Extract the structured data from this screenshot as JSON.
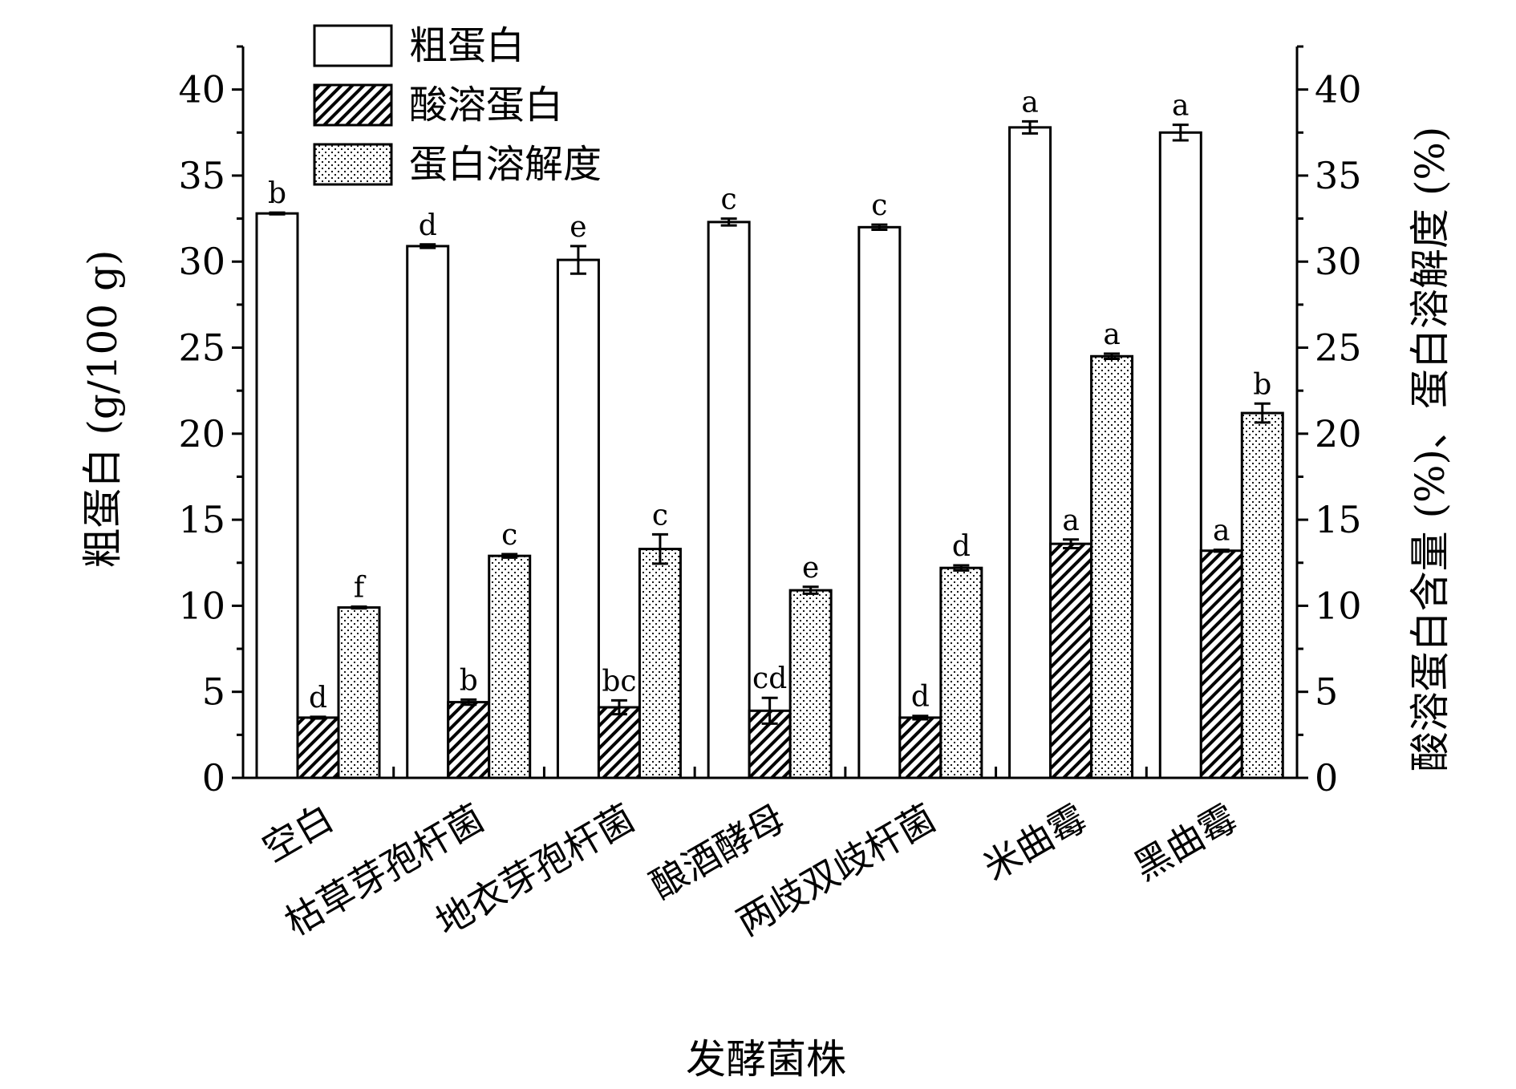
{
  "chart_data": {
    "type": "bar",
    "title": "",
    "xlabel": "发酵菌株",
    "ylabel_left": "粗蛋白 (g/100 g)",
    "ylabel_right": "酸溶蛋白含量 (%)、蛋白溶解度 (%)",
    "ylim_left": [
      0,
      42.5
    ],
    "ylim_right": [
      0,
      42.5
    ],
    "yticks_left": [
      0,
      5,
      10,
      15,
      20,
      25,
      30,
      35,
      40
    ],
    "yticks_right": [
      0,
      5,
      10,
      15,
      20,
      25,
      30,
      35,
      40
    ],
    "grid": false,
    "legend_position": "top-left",
    "categories": [
      "空白",
      "枯草芽孢杆菌",
      "地衣芽孢杆菌",
      "酿酒酵母",
      "两歧双歧杆菌",
      "米曲霉",
      "黑曲霉"
    ],
    "series": [
      {
        "name": "粗蛋白",
        "axis": "left",
        "pattern": "open",
        "values": [
          32.8,
          30.9,
          30.1,
          32.3,
          32.0,
          37.8,
          37.5
        ],
        "errors": [
          0.05,
          0.1,
          0.8,
          0.2,
          0.15,
          0.35,
          0.45
        ],
        "labels": [
          "b",
          "d",
          "e",
          "c",
          "c",
          "a",
          "a"
        ]
      },
      {
        "name": "酸溶蛋白",
        "axis": "right",
        "pattern": "hatch",
        "values": [
          3.5,
          4.4,
          4.1,
          3.9,
          3.5,
          13.6,
          13.2
        ],
        "errors": [
          0.05,
          0.15,
          0.4,
          0.75,
          0.1,
          0.25,
          0.05
        ],
        "labels": [
          "d",
          "b",
          "bc",
          "cd",
          "d",
          "a",
          "a"
        ]
      },
      {
        "name": "蛋白溶解度",
        "axis": "right",
        "pattern": "dots",
        "values": [
          9.9,
          12.9,
          13.3,
          10.9,
          12.2,
          24.5,
          21.2
        ],
        "errors": [
          0.05,
          0.1,
          0.85,
          0.2,
          0.15,
          0.15,
          0.55
        ],
        "labels": [
          "f",
          "c",
          "c",
          "e",
          "d",
          "a",
          "b"
        ]
      }
    ]
  }
}
